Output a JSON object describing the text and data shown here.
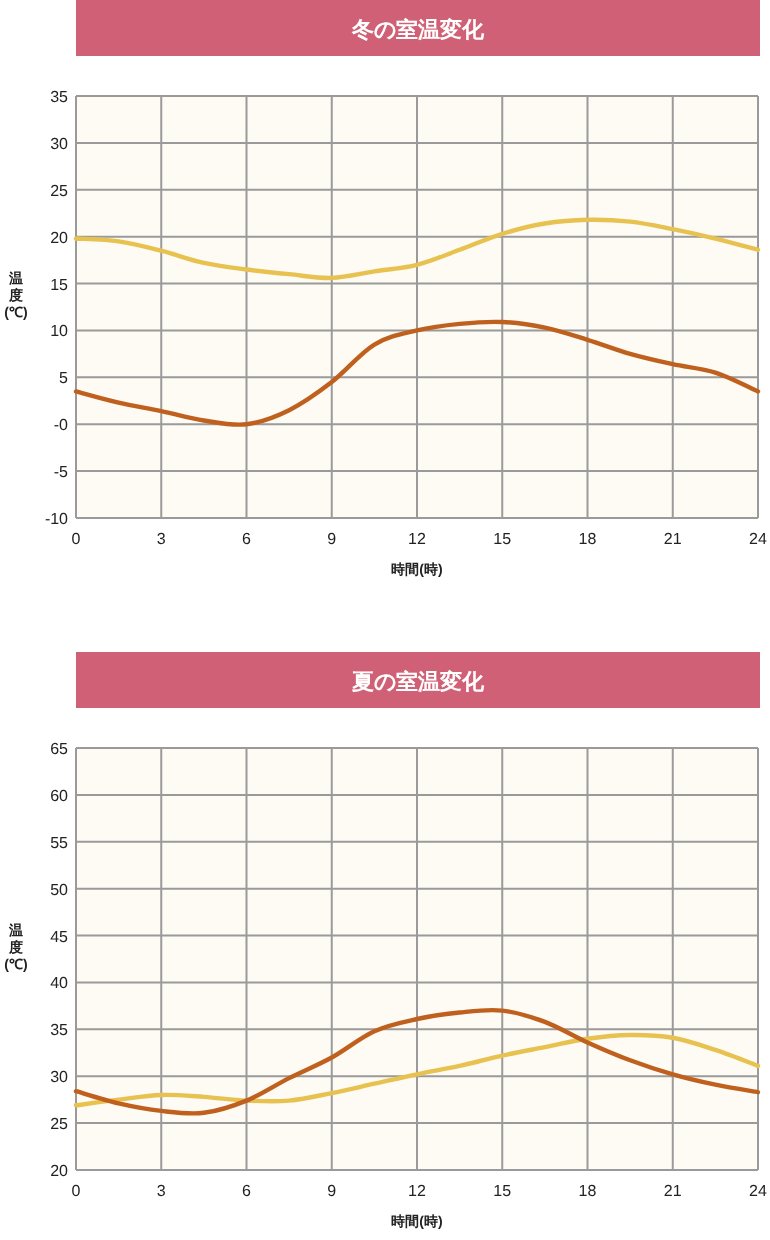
{
  "chart_data": [
    {
      "type": "line",
      "title": "冬の室温変化",
      "xlabel": "時間(時)",
      "ylabel": "温度(℃)",
      "x": [
        0,
        1.5,
        3,
        4.5,
        6,
        7.5,
        9,
        10.5,
        12,
        13.5,
        15,
        16.5,
        18,
        19.5,
        21,
        22.5,
        24
      ],
      "series": [
        {
          "color": "#e8c250",
          "values": [
            19.8,
            19.5,
            18.5,
            17.2,
            16.5,
            16,
            15.6,
            16.3,
            17,
            18.6,
            20.3,
            21.4,
            21.8,
            21.6,
            20.8,
            19.8,
            18.6
          ]
        },
        {
          "color": "#c0601e",
          "values": [
            3.5,
            2.3,
            1.4,
            0.4,
            0,
            1.5,
            4.5,
            8.5,
            10,
            10.7,
            10.9,
            10.3,
            9,
            7.5,
            6.4,
            5.5,
            3.5
          ]
        }
      ],
      "xlim": [
        0,
        24
      ],
      "ylim": [
        -10,
        35
      ],
      "xticks": [
        0,
        3,
        6,
        9,
        12,
        15,
        18,
        21,
        24
      ],
      "yticks": [
        -10,
        -5,
        {
          "value": 0,
          "label": "-0"
        },
        5,
        10,
        15,
        20,
        25,
        30,
        35
      ],
      "grid": true
    },
    {
      "type": "line",
      "title": "夏の室温変化",
      "xlabel": "時間(時)",
      "ylabel": "温度(℃)",
      "x": [
        0,
        1.5,
        3,
        4.5,
        6,
        7.5,
        9,
        10.5,
        12,
        13.5,
        15,
        16.5,
        18,
        19.5,
        21,
        22.5,
        24
      ],
      "series": [
        {
          "color": "#e8c250",
          "values": [
            26.9,
            27.5,
            28,
            27.8,
            27.4,
            27.4,
            28.2,
            29.2,
            30.2,
            31.1,
            32.2,
            33.1,
            34,
            34.4,
            34.1,
            32.8,
            31.1
          ]
        },
        {
          "color": "#c0601e",
          "values": [
            28.4,
            27.1,
            26.3,
            26.1,
            27.4,
            29.8,
            32,
            34.8,
            36.1,
            36.8,
            37,
            35.8,
            33.6,
            31.7,
            30.2,
            29.1,
            28.3
          ]
        }
      ],
      "xlim": [
        0,
        24
      ],
      "ylim": [
        20,
        65
      ],
      "xticks": [
        0,
        3,
        6,
        9,
        12,
        15,
        18,
        21,
        24
      ],
      "yticks": [
        20,
        25,
        30,
        35,
        40,
        45,
        50,
        55,
        60,
        65
      ],
      "grid": true
    }
  ]
}
